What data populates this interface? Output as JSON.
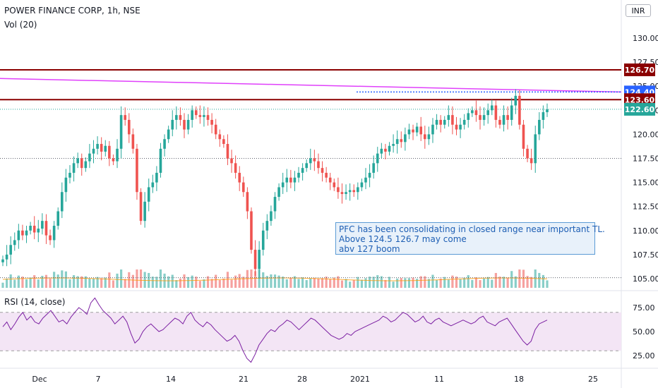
{
  "header": {
    "symbol_title": "POWER FINANCE CORP, 1h, NSE",
    "volume_legend": "Vol (20)",
    "rsi_legend": "RSI (14, close)",
    "currency": "INR"
  },
  "annotation": {
    "lines": [
      "PFC has been consolidating in closed range near important TL.",
      "Above 124.5 126.7 may come",
      "abv 127 boom"
    ]
  },
  "colors": {
    "up": "#26a69a",
    "down": "#ef5350",
    "level_line": "#8b0000",
    "trendline": "#e040fb",
    "rsi_line": "#7b1fa2",
    "rsi_band": "#f3e5f5",
    "last_price": "#26a69a",
    "blue_tag": "#2962ff"
  },
  "chart_data": [
    {
      "type": "candlestick",
      "title": "POWER FINANCE CORP, 1h, NSE",
      "ylim": [
        104,
        131
      ],
      "y_ticks": [
        130,
        127.5,
        125,
        122.5,
        120,
        117.5,
        115,
        112.5,
        110,
        107.5,
        105
      ],
      "y_tick_labels": [
        "130.00",
        "127.50",
        "125.00",
        "122.50",
        "120.00",
        "117.50",
        "115.00",
        "112.50",
        "110.00",
        "107.50",
        "105.00"
      ],
      "x_tick_labels": [
        "Dec",
        "7",
        "14",
        "21",
        "28",
        "2021",
        "11",
        "18",
        "25"
      ],
      "price_levels": [
        {
          "label": "126.70",
          "value": 126.7,
          "kind": "resistance"
        },
        {
          "label": "124.40",
          "value": 124.4,
          "kind": "trendline"
        },
        {
          "label": "123.60",
          "value": 123.6,
          "kind": "resistance"
        },
        {
          "label": "122.60",
          "value": 122.6,
          "kind": "last_price"
        }
      ],
      "trendline": {
        "start_value": 125.8,
        "end_value": 124.4
      },
      "dotted_support": 117.5,
      "close_path": [
        107,
        107.5,
        108.5,
        109,
        110,
        109.5,
        110,
        110.5,
        109.8,
        110.2,
        111,
        109.5,
        109,
        110.5,
        112,
        114,
        115.5,
        116,
        117,
        117.5,
        116.5,
        117.2,
        118,
        118.5,
        119,
        118.2,
        118.8,
        117.5,
        117.2,
        118.5,
        122,
        121.5,
        120,
        118.5,
        114,
        111,
        113,
        114.5,
        115,
        116,
        118.5,
        119.5,
        120.5,
        121.5,
        122,
        121.5,
        120.5,
        121.5,
        122.5,
        122,
        121.8,
        122,
        121.5,
        121,
        120,
        119.5,
        119,
        117.5,
        117,
        116,
        115,
        114,
        112,
        108,
        106,
        108,
        110,
        111,
        112,
        113.5,
        114.5,
        115,
        115.5,
        115,
        115.5,
        116,
        116.5,
        117,
        117.5,
        117.2,
        116.5,
        116,
        115.5,
        115,
        114.5,
        114,
        113.8,
        114,
        114.2,
        114,
        114.5,
        115,
        115.5,
        116,
        117,
        118,
        118.5,
        118.2,
        118.8,
        119,
        119.5,
        119.2,
        120,
        120.5,
        120.2,
        120.8,
        120,
        119.5,
        120,
        121,
        121.5,
        121,
        121.5,
        122,
        121,
        120.5,
        121,
        121.5,
        122.2,
        122.5,
        122,
        121.5,
        122,
        122.5,
        123,
        121.5,
        121,
        122,
        121.5,
        123,
        124,
        121,
        118.5,
        117.5,
        117,
        120,
        121.5,
        122.3,
        122.6
      ]
    },
    {
      "type": "bar",
      "title": "Vol (20)"
    },
    {
      "type": "line",
      "title": "RSI (14, close)",
      "ylim": [
        15,
        90
      ],
      "y_ticks": [
        75,
        50,
        25
      ],
      "y_tick_labels": [
        "75.00",
        "50.00",
        "25.00"
      ],
      "bands": [
        30,
        70
      ],
      "values": [
        55,
        60,
        52,
        58,
        65,
        70,
        62,
        66,
        60,
        58,
        64,
        68,
        72,
        66,
        60,
        62,
        58,
        65,
        70,
        75,
        72,
        68,
        80,
        85,
        78,
        72,
        68,
        64,
        58,
        62,
        66,
        60,
        48,
        38,
        42,
        50,
        55,
        58,
        54,
        50,
        52,
        56,
        60,
        64,
        62,
        58,
        66,
        70,
        62,
        58,
        55,
        60,
        57,
        52,
        48,
        44,
        40,
        42,
        46,
        40,
        30,
        22,
        18,
        26,
        36,
        42,
        48,
        52,
        50,
        55,
        58,
        62,
        60,
        56,
        52,
        56,
        60,
        64,
        62,
        58,
        54,
        50,
        46,
        44,
        42,
        44,
        48,
        46,
        50,
        52,
        54,
        56,
        58,
        60,
        62,
        66,
        64,
        60,
        62,
        66,
        70,
        68,
        64,
        60,
        62,
        66,
        60,
        58,
        62,
        64,
        60,
        58,
        56,
        58,
        60,
        62,
        60,
        58,
        60,
        64,
        66,
        60,
        58,
        56,
        60,
        62,
        64,
        58,
        52,
        46,
        40,
        36,
        40,
        52,
        58,
        60,
        62
      ]
    }
  ]
}
